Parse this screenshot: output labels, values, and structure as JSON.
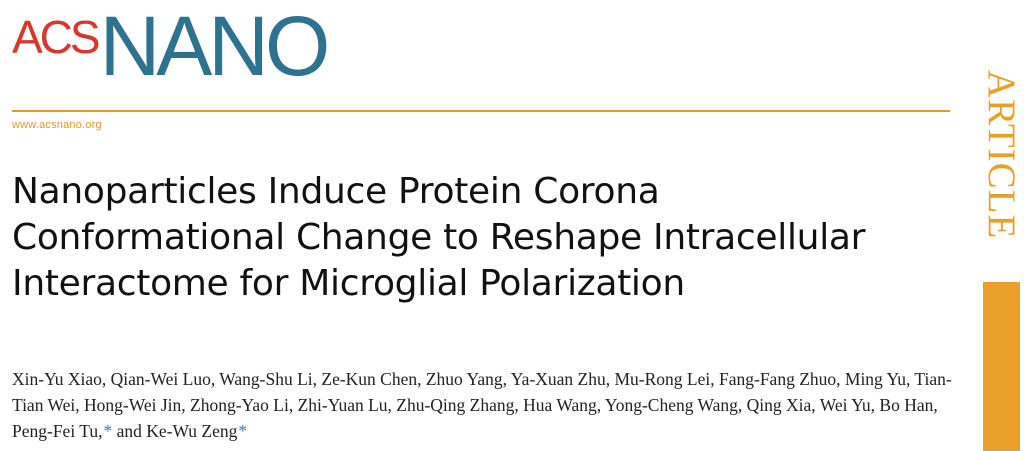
{
  "journal": {
    "logo_prefix": "ACS",
    "logo_name": "NANO",
    "url": "www.acsnano.org",
    "section_label": "ARTICLE",
    "colors": {
      "accent_orange": "#e19a2b",
      "logo_red": "#d8372b",
      "logo_blue": "#2f7290",
      "link_blue": "#3a76c8"
    }
  },
  "paper": {
    "title": "Nanoparticles Induce Protein Corona Conformational Change to Reshape Intracellular Interactome for Microglial Polarization",
    "authors_text": "Xin-Yu Xiao, Qian-Wei Luo, Wang-Shu Li, Ze-Kun Chen, Zhuo Yang, Ya-Xuan Zhu, Mu-Rong Lei, Fang-Fang Zhuo, Ming Yu, Tian-Tian Wei, Hong-Wei Jin, Zhong-Yao Li, Zhi-Yuan Lu, Zhu-Qing Zhang, Hua Wang, Yong-Cheng Wang, Qing Xia, Wei Yu, Bo Han, Peng-Fei Tu,",
    "connector": " and ",
    "last_author": "Ke-Wu Zeng",
    "corresponding_mark": "*"
  }
}
